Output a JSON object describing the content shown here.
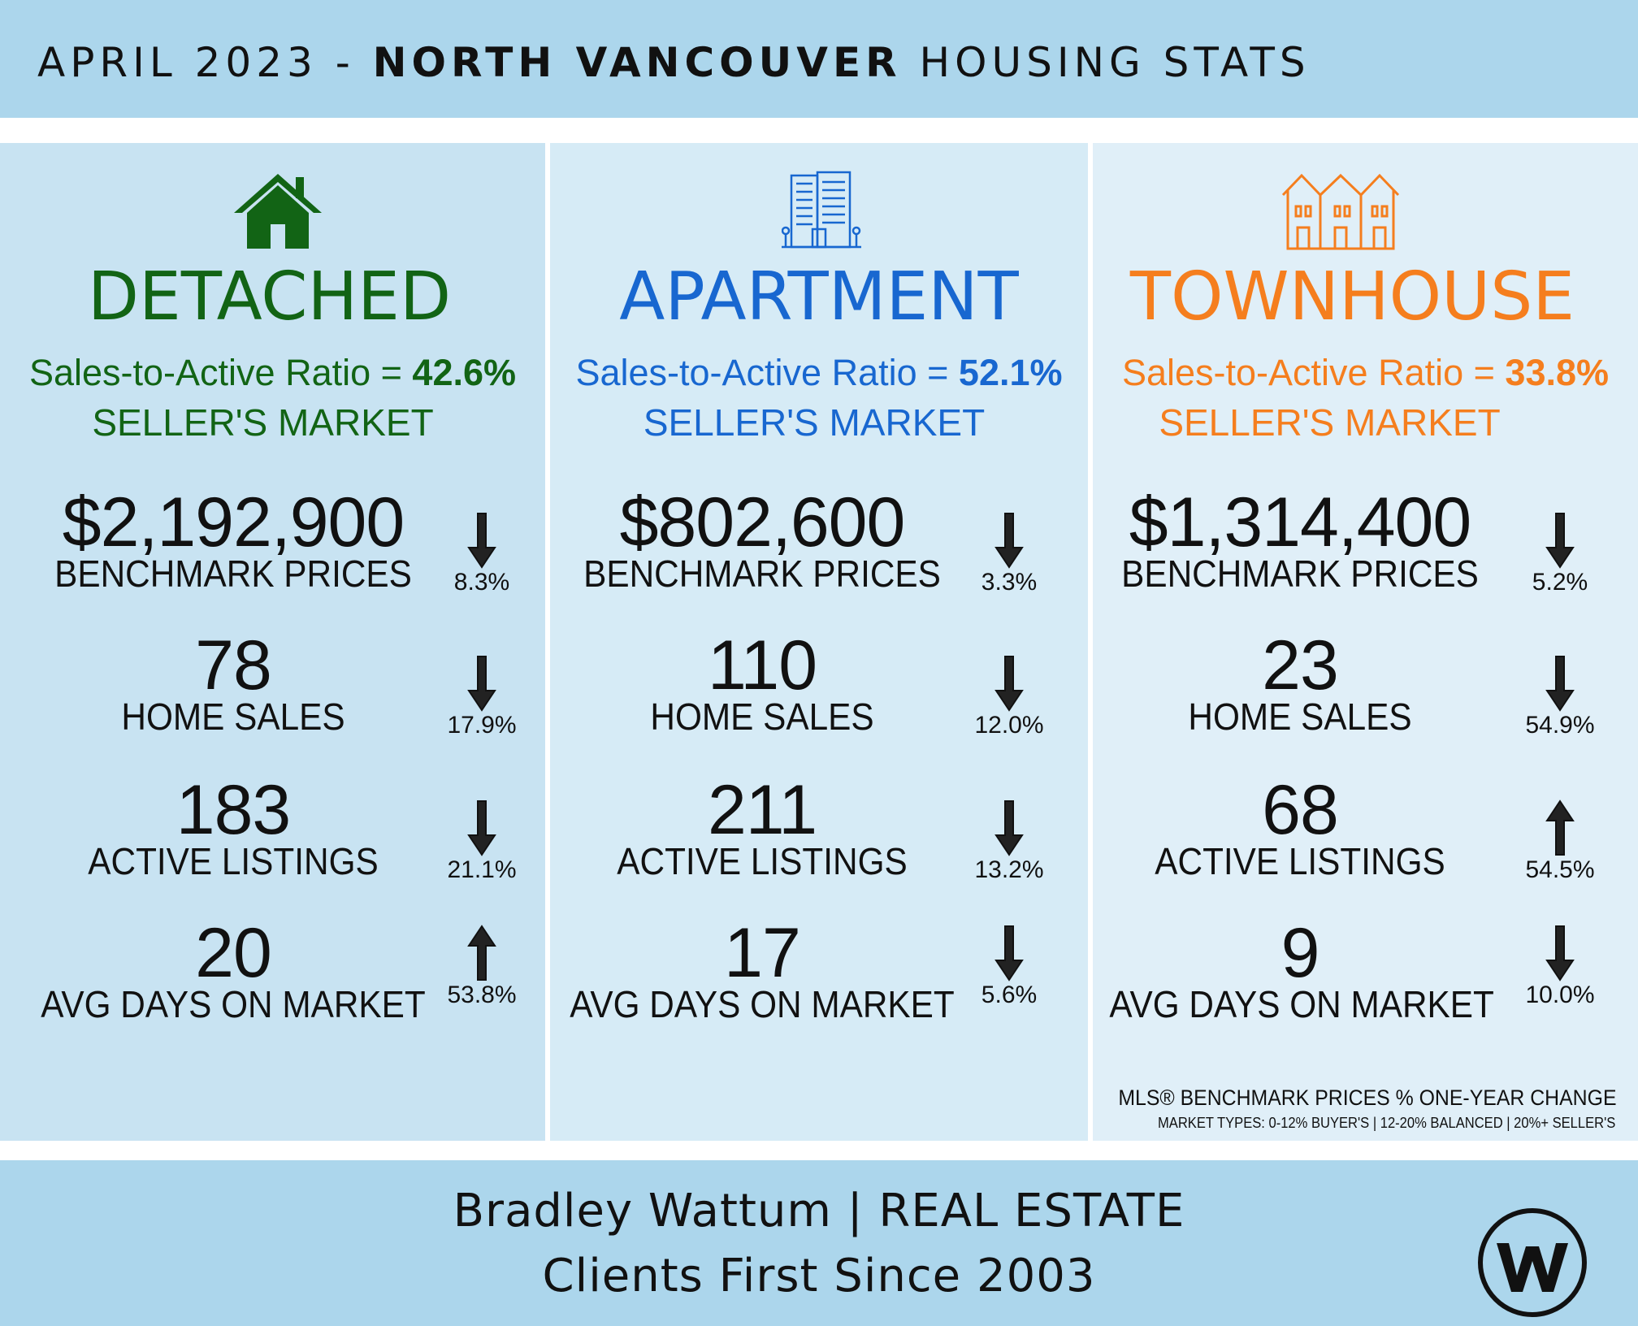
{
  "header": {
    "title_prefix": "APRIL 2023 - ",
    "title_bold": "NORTH VANCOUVER",
    "title_suffix": " HOUSING STATS"
  },
  "columns": [
    {
      "type": "DETACHED",
      "icon": "house-icon",
      "color": "#126415",
      "ratio_label": "Sales-to-Active Ratio = ",
      "ratio_value": "42.6%",
      "market": "SELLER'S MARKET",
      "stats": [
        {
          "value": "$2,192,900",
          "label": "BENCHMARK PRICES",
          "change": "8.3%",
          "direction": "down"
        },
        {
          "value": "78",
          "label": "HOME SALES",
          "change": "17.9%",
          "direction": "down"
        },
        {
          "value": "183",
          "label": "ACTIVE LISTINGS",
          "change": "21.1%",
          "direction": "down"
        },
        {
          "value": "20",
          "label": "AVG DAYS ON MARKET",
          "change": "53.8%",
          "direction": "up"
        }
      ]
    },
    {
      "type": "APARTMENT",
      "icon": "apartment-building-icon",
      "color": "#1867d0",
      "ratio_label": "Sales-to-Active Ratio = ",
      "ratio_value": "52.1%",
      "market": "SELLER'S MARKET",
      "stats": [
        {
          "value": "$802,600",
          "label": "BENCHMARK PRICES",
          "change": "3.3%",
          "direction": "down"
        },
        {
          "value": "110",
          "label": "HOME SALES",
          "change": "12.0%",
          "direction": "down"
        },
        {
          "value": "211",
          "label": "ACTIVE LISTINGS",
          "change": "13.2%",
          "direction": "down"
        },
        {
          "value": "17",
          "label": "AVG DAYS ON MARKET",
          "change": "5.6%",
          "direction": "down"
        }
      ]
    },
    {
      "type": "TOWNHOUSE",
      "icon": "townhouse-icon",
      "color": "#f57e1e",
      "ratio_label": "Sales-to-Active Ratio = ",
      "ratio_value": "33.8%",
      "market": "SELLER'S MARKET",
      "stats": [
        {
          "value": "$1,314,400",
          "label": "BENCHMARK PRICES",
          "change": "5.2%",
          "direction": "down"
        },
        {
          "value": "23",
          "label": "HOME SALES",
          "change": "54.9%",
          "direction": "down"
        },
        {
          "value": "68",
          "label": "ACTIVE LISTINGS",
          "change": "54.5%",
          "direction": "up"
        },
        {
          "value": "9",
          "label": "AVG DAYS ON MARKET",
          "change": "10.0%",
          "direction": "down"
        }
      ]
    }
  ],
  "notes": {
    "line1": "MLS® BENCHMARK PRICES % ONE-YEAR CHANGE",
    "line2": "MARKET TYPES: 0-12% BUYER'S | 12-20% BALANCED | 20%+ SELLER'S"
  },
  "footer": {
    "line1": "Bradley Wattum | REAL ESTATE",
    "line2": "Clients First Since 2003",
    "logo_icon": "w-logo-icon"
  }
}
